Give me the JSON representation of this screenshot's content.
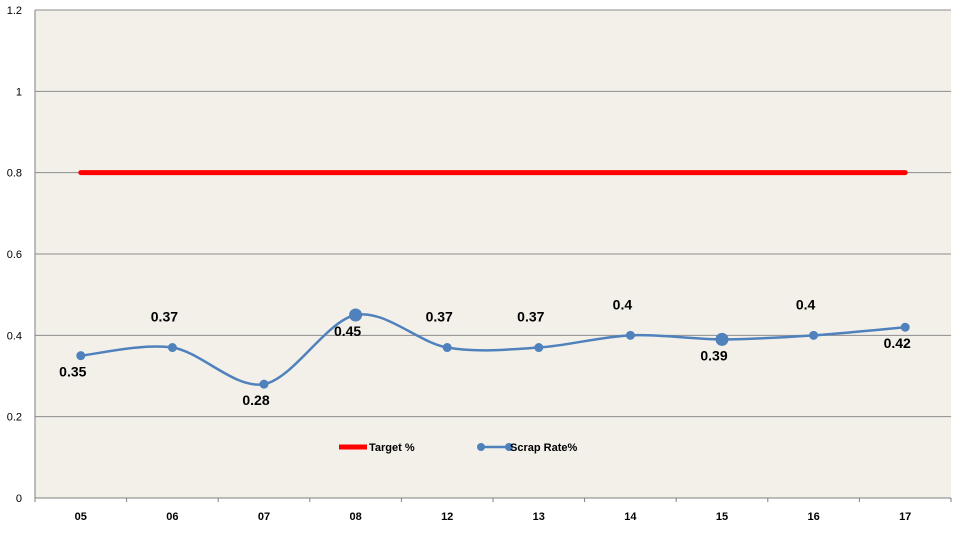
{
  "chart_data": {
    "type": "line",
    "title": "",
    "xlabel": "",
    "ylabel": "",
    "categories": [
      "05",
      "06",
      "07",
      "08",
      "12",
      "13",
      "14",
      "15",
      "16",
      "17"
    ],
    "ylim": [
      0,
      1.2
    ],
    "yticks": [
      "0",
      "0.2",
      "0.4",
      "0.6",
      "0.8",
      "1",
      "1.2"
    ],
    "grid": true,
    "legend_position": "inside-bottom-center",
    "series": [
      {
        "name": "Target  %",
        "values": [
          0.8,
          0.8,
          0.8,
          0.8,
          0.8,
          0.8,
          0.8,
          0.8,
          0.8,
          0.8
        ],
        "color": "#ff0000",
        "markers": false,
        "data_labels": false
      },
      {
        "name": "Scrap Rate%",
        "values": [
          0.35,
          0.37,
          0.28,
          0.45,
          0.37,
          0.37,
          0.4,
          0.39,
          0.4,
          0.42
        ],
        "labels": [
          "0.35",
          "0.37",
          "0.28",
          "0.45",
          "0.37",
          "0.37",
          "0.4",
          "0.39",
          "0.4",
          "0.42"
        ],
        "color": "#4f81bd",
        "smooth": true,
        "markers": true,
        "data_labels": true
      }
    ],
    "colors": {
      "plot_background": "#f3f0ea",
      "gridline": "#8c8c8c",
      "axis": "#7f7f7f"
    }
  }
}
